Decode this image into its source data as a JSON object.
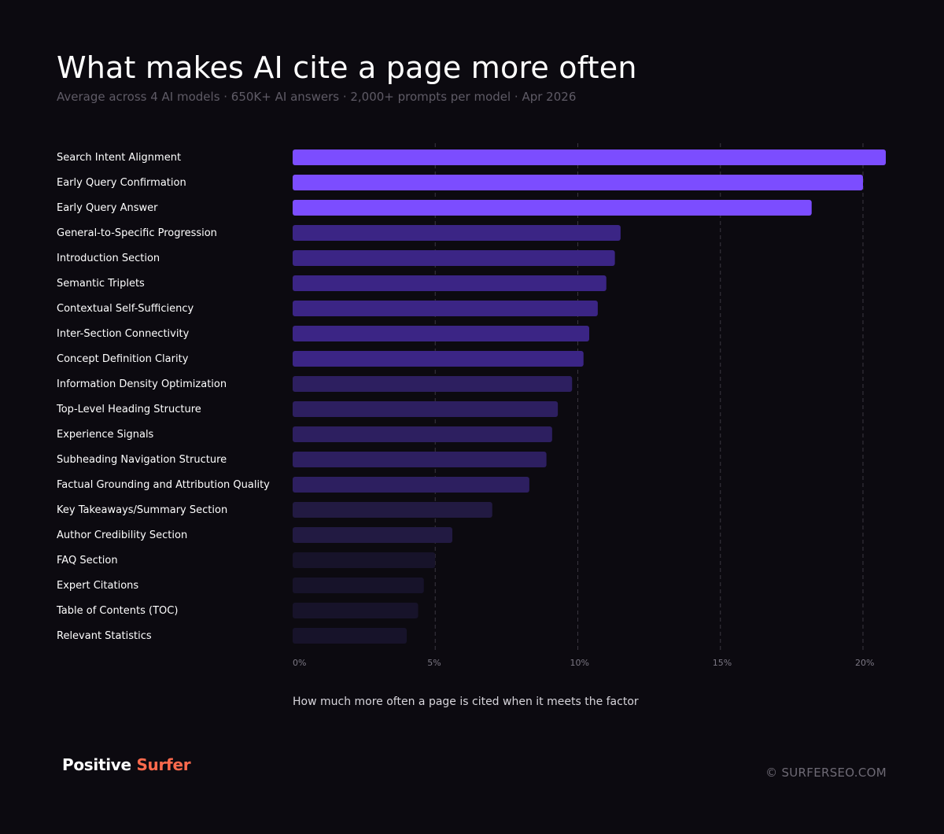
{
  "header": {
    "title": "What makes AI cite a page more often",
    "subtitle": "Average across 4 AI models  ·  650K+ AI answers · 2,000+ prompts per model · Apr 2026"
  },
  "footer": {
    "brand_part1": "Positive ",
    "brand_part2": "Surfer",
    "copyright": "© SURFERSEO.COM"
  },
  "colors": {
    "background": "#0c0a10",
    "bar_top": "#7c4dff",
    "brand_accent": "#ff6a4d",
    "gridline": "#3a3640"
  },
  "chart_data": {
    "type": "bar",
    "orientation": "horizontal",
    "title": "What makes AI cite a page more often",
    "xlabel": "How much more often a page is cited when it meets the factor",
    "ylabel": "",
    "xlim": [
      0,
      21
    ],
    "xticks": [
      0,
      5,
      10,
      15,
      20
    ],
    "xtick_labels": [
      "0%",
      "5%",
      "10%",
      "15%",
      "20%"
    ],
    "grid": "vertical dashed",
    "categories": [
      "Search Intent Alignment",
      "Early Query Confirmation",
      "Early Query Answer",
      "General-to-Specific Progression",
      "Introduction Section",
      "Semantic Triplets",
      "Contextual Self-Sufficiency",
      "Inter-Section Connectivity",
      "Concept Definition Clarity",
      "Information Density Optimization",
      "Top-Level Heading Structure",
      "Experience Signals",
      "Subheading Navigation Structure",
      "Factual Grounding and Attribution Quality",
      "Key Takeaways/Summary Section",
      "Author Credibility Section",
      "FAQ Section",
      "Expert Citations",
      "Table of Contents (TOC)",
      "Relevant Statistics"
    ],
    "values": [
      20.8,
      20.0,
      18.2,
      11.5,
      11.3,
      11.0,
      10.7,
      10.4,
      10.2,
      9.8,
      9.3,
      9.1,
      8.9,
      8.3,
      7.0,
      5.6,
      5.0,
      4.6,
      4.4,
      4.0
    ],
    "bar_colors": [
      "#7c4dff",
      "#7c4dff",
      "#7c4dff",
      "#3b2585",
      "#3b2585",
      "#3b2585",
      "#3b2585",
      "#3b2585",
      "#3b2585",
      "#2d1f60",
      "#2d1f60",
      "#2d1f60",
      "#2d1f60",
      "#2d1f60",
      "#221a42",
      "#221a42",
      "#17132a",
      "#17132a",
      "#17132a",
      "#17132a"
    ]
  }
}
